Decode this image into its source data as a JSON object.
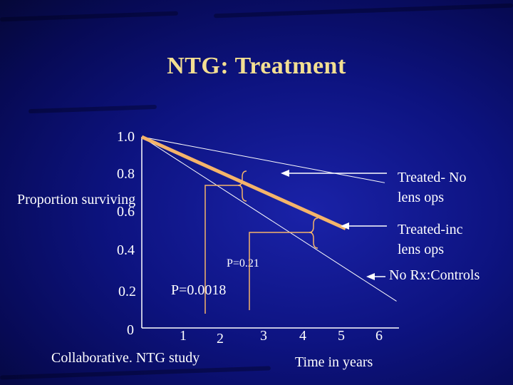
{
  "title": "NTG: Treatment",
  "chart_data": {
    "type": "line",
    "title": "NTG: Treatment",
    "ylabel": "Proportion surviving",
    "xlabel": "Time in years",
    "footer": "Collaborative. NTG study",
    "ylim": [
      0,
      1
    ],
    "xlim": [
      0,
      6
    ],
    "y_ticks": [
      "0",
      "0.2",
      "0.4",
      "0.6",
      "0.8",
      "1.0"
    ],
    "x_ticks": [
      "1",
      "2",
      "3",
      "4",
      "5",
      "6"
    ],
    "series": [
      {
        "name": "Treated- No lens ops",
        "x": [
          0,
          6.2
        ],
        "y": [
          1.0,
          0.76
        ]
      },
      {
        "name": "Treated-inc lens ops",
        "x": [
          0,
          5.2
        ],
        "y": [
          1.0,
          0.52
        ]
      },
      {
        "name": "No Rx:Controls",
        "x": [
          0,
          6.5
        ],
        "y": [
          1.0,
          0.14
        ]
      }
    ],
    "annotations": {
      "p1": "P=0.21",
      "p2": "P=0.0018"
    },
    "colors": {
      "treated_inc": "#f5b46a",
      "lines": "#ffffff",
      "title": "#f3df92"
    }
  }
}
